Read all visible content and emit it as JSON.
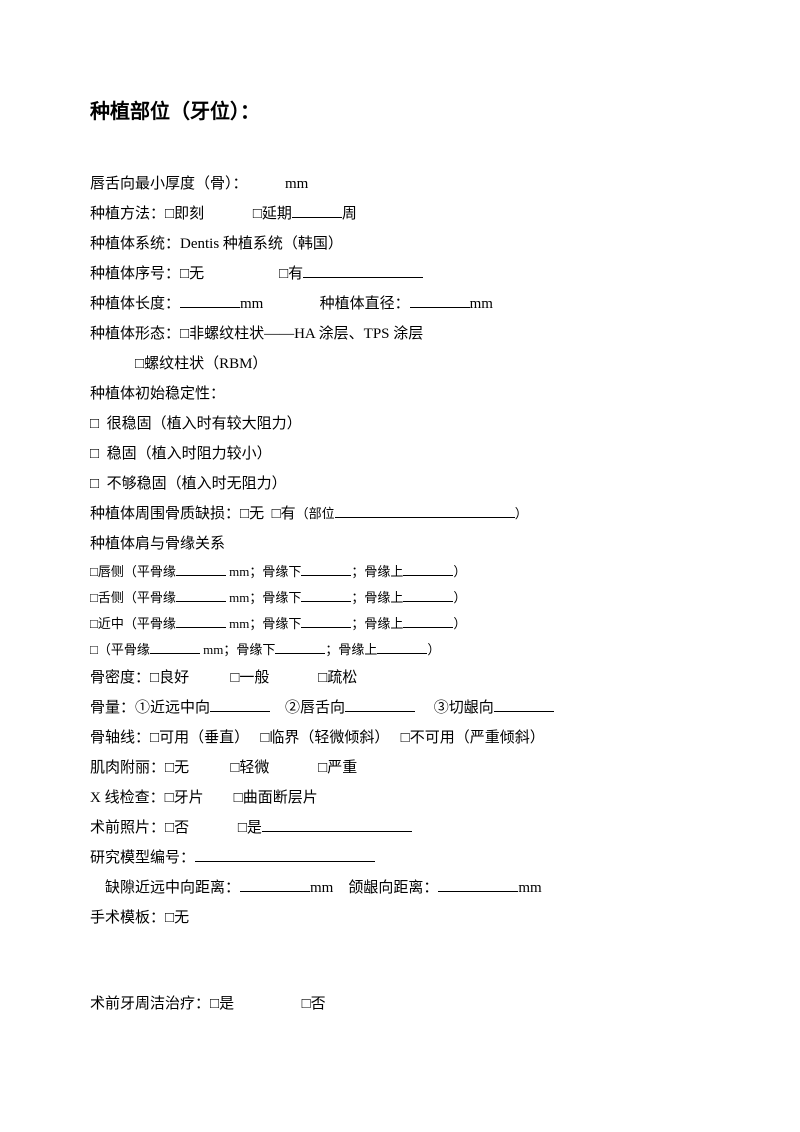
{
  "title": "种植部位（牙位）：",
  "l1": {
    "label": "唇舌向最小厚度（骨）：",
    "unit": "mm"
  },
  "l2": {
    "label": "种植方法：",
    "opt1": "即刻",
    "opt2": "延期",
    "unit": "周"
  },
  "l3": {
    "label": "种植体系统：",
    "value": "Dentis 种植系统（韩国）"
  },
  "l4": {
    "label": "种植体序号：",
    "opt1": "无",
    "opt2": "有"
  },
  "l5": {
    "label1": "种植体长度：",
    "unit1": "mm",
    "label2": "种植体直径：",
    "unit2": "mm"
  },
  "l6": {
    "label": "种植体形态：",
    "opt1": "非螺纹柱状——HA 涂层、TPS 涂层",
    "opt2": "螺纹柱状（RBM）"
  },
  "l7": {
    "label": "种植体初始稳定性："
  },
  "l8": {
    "opt1": "很稳固（植入时有较大阻力）",
    "opt2": "稳固（植入时阻力较小）",
    "opt3": "不够稳固（植入时无阻力）"
  },
  "l9": {
    "label": "种植体周围骨质缺损：",
    "opt1": "无",
    "opt2": "有",
    "sub": "（部位",
    "close": "）"
  },
  "l10": {
    "label": "种植体肩与骨缘关系"
  },
  "l11": {
    "a": "唇侧（平骨缘",
    "b": " mm；骨缘下",
    "c": "；骨缘上",
    "d": "）"
  },
  "l12": {
    "a": "舌侧（平骨缘",
    "b": " mm；骨缘下",
    "c": "；骨缘上",
    "d": "）"
  },
  "l13": {
    "a": "近中（平骨缘",
    "b": " mm；骨缘下",
    "c": "；骨缘上",
    "d": "）"
  },
  "l14": {
    "a": "（平骨缘",
    "b": " mm；骨缘下",
    "c": "；骨缘上",
    "d": "）"
  },
  "l15": {
    "label": "骨密度：",
    "opt1": "良好",
    "opt2": "一般",
    "opt3": "疏松"
  },
  "l16": {
    "label": "骨量：",
    "a": "①近远中向",
    "b": "②唇舌向",
    "c": "③切龈向"
  },
  "l17": {
    "label": "骨轴线：",
    "opt1": "可用（垂直）",
    "opt2": "临界（轻微倾斜）",
    "opt3": "不可用（严重倾斜）"
  },
  "l18": {
    "label": "肌肉附丽：",
    "opt1": "无",
    "opt2": "轻微",
    "opt3": "严重"
  },
  "l19": {
    "label": "X 线检查：",
    "opt1": "牙片",
    "opt2": "曲面断层片"
  },
  "l20": {
    "label": "术前照片：",
    "opt1": "否",
    "opt2": "是"
  },
  "l21": {
    "label": "研究模型编号："
  },
  "l22": {
    "a": "缺隙近远中向距离：",
    "ua": "mm",
    "b": "颌龈向距离：",
    "ub": "mm"
  },
  "l23": {
    "label": "手术模板：",
    "opt1": "无"
  },
  "l24": {
    "label": "术前牙周洁治疗：",
    "opt1": "是",
    "opt2": "否"
  }
}
